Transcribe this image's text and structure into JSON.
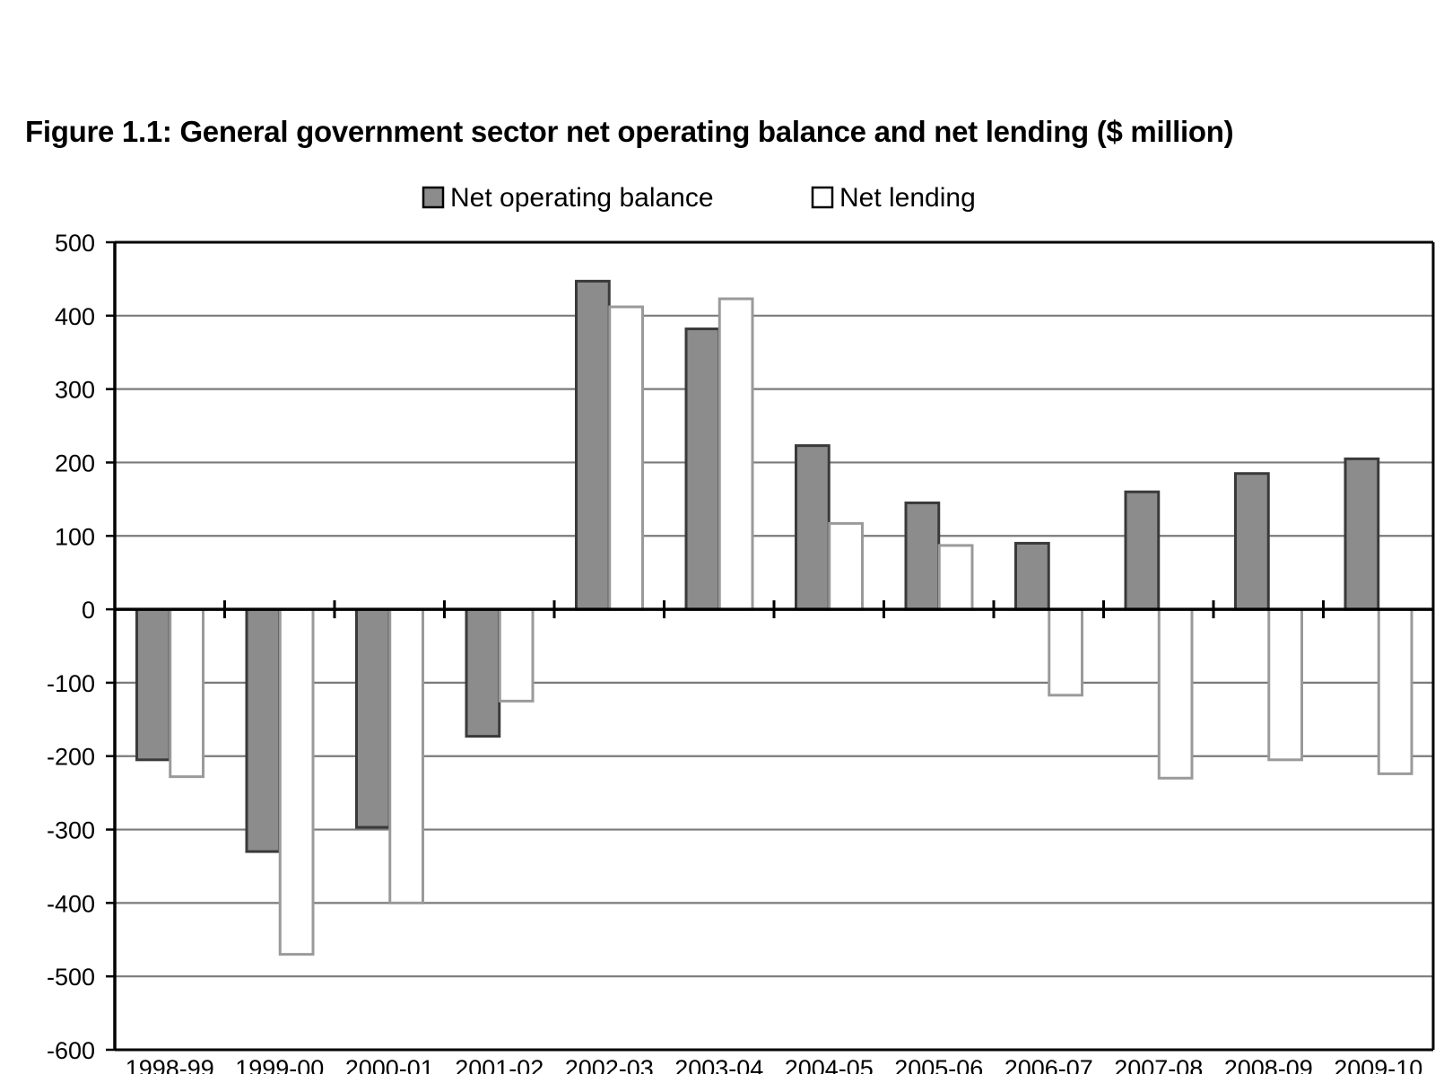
{
  "figure": {
    "title": "Figure 1.1:  General government sector net operating balance and net lending ($ million)"
  },
  "chart_data": {
    "type": "bar",
    "title": "Figure 1.1:  General government sector net operating balance and net lending ($ million)",
    "xlabel": "",
    "ylabel": "",
    "ylim": [
      -600,
      500
    ],
    "yticks": [
      500,
      400,
      300,
      200,
      100,
      0,
      -100,
      -200,
      -300,
      -400,
      -500,
      -600
    ],
    "grid": true,
    "legend_position": "top-center",
    "categories": [
      "1998-99",
      "1999-00",
      "2000-01",
      "2001-02",
      "2002-03",
      "2003-04",
      "2004-05",
      "2005-06",
      "2006-07",
      "2007-08",
      "2008-09",
      "2009-10"
    ],
    "series": [
      {
        "name": "Net operating balance",
        "color": "#8c8c8c",
        "values": [
          -205,
          -330,
          -297,
          -173,
          447,
          382,
          223,
          145,
          90,
          160,
          185,
          205
        ]
      },
      {
        "name": "Net lending",
        "color": "#ffffff",
        "values": [
          -228,
          -470,
          -400,
          -125,
          412,
          423,
          117,
          87,
          -117,
          -230,
          -205,
          -224
        ]
      }
    ]
  }
}
